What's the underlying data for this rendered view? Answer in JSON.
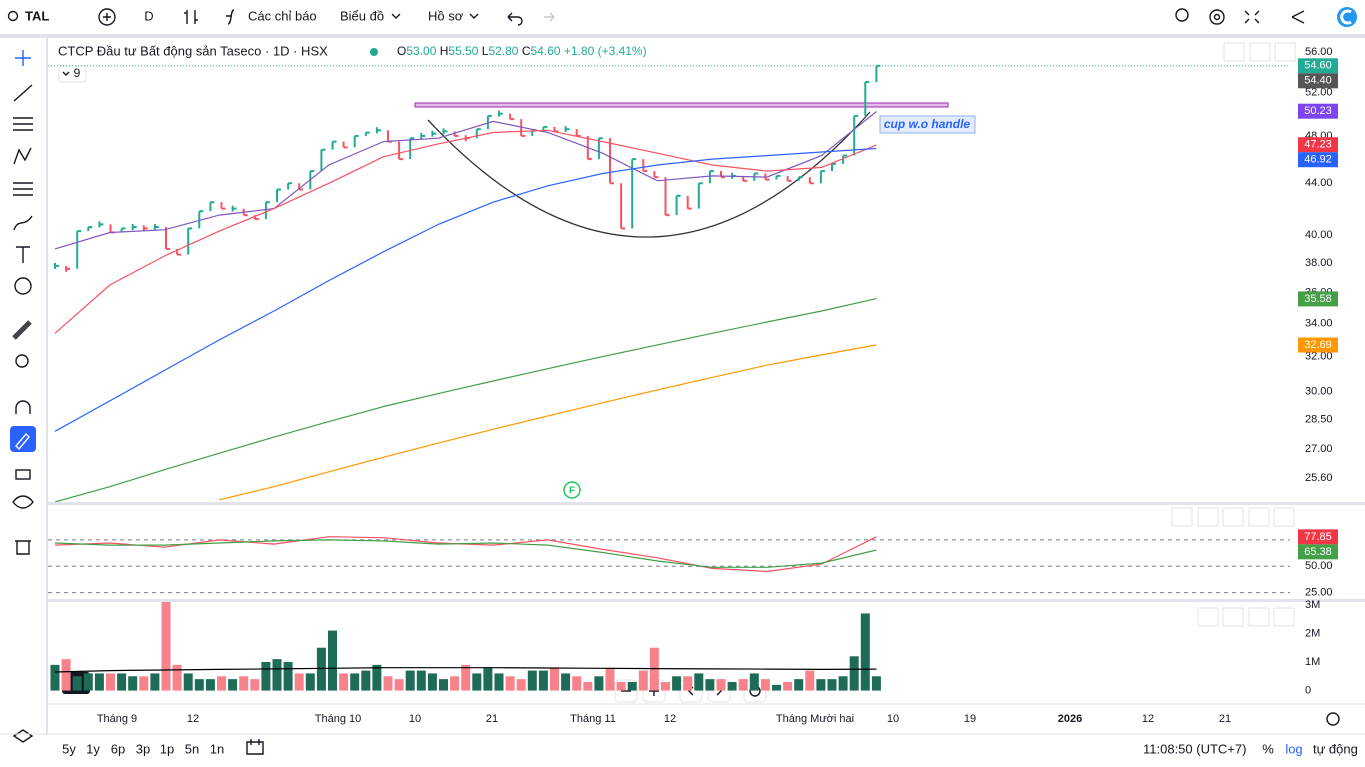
{
  "toolbar": {
    "symbol": "TAL",
    "interval": "D",
    "indicators": "Các chỉ báo",
    "chart_menu": "Biểu đồ",
    "profile": "Hồ sơ"
  },
  "legend": {
    "title": "CTCP Đầu tư Bất động sản Taseco · 1D · HSX",
    "ohlc": [
      {
        "key": "O",
        "value": "53.00"
      },
      {
        "key": "H",
        "value": "55.50"
      },
      {
        "key": "L",
        "value": "52.80"
      },
      {
        "key": "C",
        "value": "54.60"
      }
    ],
    "change": "+1.80 (+3.41%)",
    "collapsed_count": "9"
  },
  "annotation": "cup w.o handle",
  "event_marker": "F",
  "time_axis": [
    "Tháng 9",
    "12",
    "Tháng 10",
    "10",
    "21",
    "Tháng 11",
    "12",
    "Tháng Mười hai",
    "10",
    "19",
    "2026",
    "12",
    "21"
  ],
  "bottom_bar": {
    "ranges": [
      "5y",
      "1y",
      "6p",
      "3p",
      "1p",
      "5n",
      "1n"
    ],
    "clock": "11:08:50 (UTC+7)",
    "percent": "%",
    "log": "log",
    "auto": "tự động"
  },
  "chart_data": [
    {
      "type": "price-bars",
      "log_scale": true,
      "up_color": "#22ab94",
      "down_color": "#f7525f",
      "values": [
        37.8,
        37.6,
        40.3,
        40.6,
        40.8,
        40.2,
        40.5,
        40.6,
        40.5,
        40.6,
        39.0,
        38.6,
        40.5,
        41.8,
        42.5,
        42.0,
        42.0,
        41.5,
        41.2,
        42.5,
        43.5,
        44.0,
        43.5,
        45.0,
        46.8,
        47.5,
        47.0,
        48.0,
        48.3,
        48.5,
        47.5,
        46.0,
        47.8,
        48.0,
        48.2,
        48.4,
        48.0,
        47.8,
        48.6,
        49.8,
        50.0,
        49.5,
        48.0,
        48.5,
        48.8,
        48.4,
        48.6,
        48.0,
        46.0,
        47.8,
        44.0,
        40.5,
        46.0,
        45.0,
        44.5,
        41.5,
        43.0,
        42.0,
        44.0,
        45.0,
        44.5,
        44.6,
        44.2,
        44.8,
        44.3,
        44.6,
        44.2,
        44.5,
        44.0,
        45.0,
        45.6,
        46.3,
        49.8,
        53.0,
        54.6
      ],
      "ylim": [
        24.5,
        57.25
      ],
      "yticks": [
        {
          "value": 56,
          "label": "56.00"
        },
        {
          "value": 52,
          "label": "52.00"
        },
        {
          "value": 48,
          "label": "48.00"
        },
        {
          "value": 44,
          "label": "44.00"
        },
        {
          "value": 40,
          "label": "40.00"
        },
        {
          "value": 38,
          "label": "38.00"
        },
        {
          "value": 36,
          "label": "36.00"
        },
        {
          "value": 34,
          "label": "34.00"
        },
        {
          "value": 32,
          "label": "32.00"
        },
        {
          "value": 30,
          "label": "30.00"
        },
        {
          "value": 28.5,
          "label": "28.50"
        },
        {
          "value": 27,
          "label": "27.00"
        },
        {
          "value": 25.6,
          "label": "25.60"
        }
      ],
      "series": [
        {
          "color": "#7e57c2",
          "values": [
            39.0,
            40.2,
            40.4,
            41.5,
            42.0,
            45.5,
            47.5,
            47.8,
            49.3,
            48.3,
            46.5,
            44.2,
            44.6,
            44.5,
            46.3,
            50.2
          ]
        },
        {
          "color": "#f7525f",
          "values": [
            33.4,
            36.5,
            38.5,
            40.3,
            42.0,
            44.0,
            46.2,
            47.3,
            48.3,
            48.5,
            47.5,
            46.5,
            45.5,
            45.0,
            45.3,
            47.2
          ]
        },
        {
          "color": "#2962ff",
          "values": [
            27.9,
            29.5,
            31.2,
            33.0,
            34.8,
            36.8,
            38.8,
            40.8,
            42.5,
            43.8,
            44.8,
            45.5,
            46.0,
            46.3,
            46.6,
            46.9
          ]
        },
        {
          "color": "#43a047",
          "values": [
            24.5,
            25.2,
            26.0,
            26.8,
            27.6,
            28.4,
            29.2,
            29.9,
            30.6,
            31.3,
            32.0,
            32.7,
            33.4,
            34.1,
            34.8,
            35.6
          ]
        },
        {
          "color": "#ff9800",
          "values": [
            null,
            null,
            null,
            24.6,
            25.2,
            25.9,
            26.6,
            27.3,
            28.0,
            28.7,
            29.4,
            30.1,
            30.8,
            31.5,
            32.1,
            32.7
          ]
        }
      ],
      "price_labels": [
        {
          "value": 54.6,
          "label": "54.60",
          "color": "#22ab94"
        },
        {
          "value": 54.4,
          "label": "54.40",
          "color": "#555555"
        },
        {
          "value": 50.23,
          "label": "50.23",
          "color": "#7e44f0"
        },
        {
          "value": 47.23,
          "label": "47.23",
          "color": "#f23645"
        },
        {
          "value": 46.92,
          "label": "46.92",
          "color": "#2962ff"
        },
        {
          "value": 35.58,
          "label": "35.58",
          "color": "#43a047"
        },
        {
          "value": 32.69,
          "label": "32.69",
          "color": "#ff9800"
        }
      ]
    },
    {
      "type": "line",
      "ylim": [
        19,
        108
      ],
      "yticks": [
        {
          "value": 50,
          "label": "50.00"
        },
        {
          "value": 25,
          "label": "25.00"
        }
      ],
      "levels": [
        75,
        50,
        25
      ],
      "series": [
        {
          "color": "#f7525f",
          "values": [
            70,
            72,
            68,
            75,
            71,
            78,
            77,
            72,
            70,
            75,
            66,
            58,
            48,
            45,
            52,
            77.85
          ]
        },
        {
          "color": "#43a047",
          "values": [
            72,
            70,
            70,
            72,
            74,
            75,
            74,
            71,
            72,
            70,
            63,
            55,
            49,
            49,
            53,
            65.38
          ]
        }
      ],
      "price_labels": [
        {
          "value": 77.85,
          "label": "77.85",
          "color": "#f23645"
        },
        {
          "value": 65.38,
          "label": "65.38",
          "color": "#43a047"
        }
      ]
    },
    {
      "type": "bar",
      "up_color": "#1e6b57",
      "down_color": "#f7828b",
      "values": [
        0.9,
        1.1,
        0.5,
        0.6,
        0.6,
        0.6,
        0.6,
        0.5,
        0.5,
        0.6,
        3.1,
        0.9,
        0.6,
        0.4,
        0.4,
        0.5,
        0.4,
        0.5,
        0.4,
        1.0,
        1.1,
        1.0,
        0.6,
        0.6,
        1.5,
        2.1,
        0.6,
        0.6,
        0.7,
        0.9,
        0.5,
        0.4,
        0.7,
        0.7,
        0.6,
        0.4,
        0.5,
        0.9,
        0.6,
        0.8,
        0.6,
        0.5,
        0.4,
        0.7,
        0.7,
        0.8,
        0.6,
        0.5,
        0.3,
        0.5,
        0.8,
        0.3,
        0.3,
        0.7,
        1.5,
        0.3,
        0.5,
        0.5,
        0.6,
        0.4,
        0.4,
        0.3,
        0.4,
        0.6,
        0.4,
        0.2,
        0.3,
        0.4,
        0.7,
        0.4,
        0.4,
        0.5,
        1.2,
        2.7,
        0.5
      ],
      "ylim": [
        -0.4,
        3.1
      ],
      "yticks": [
        {
          "value": 3,
          "label": "3M"
        },
        {
          "value": 2,
          "label": "2M"
        },
        {
          "value": 1,
          "label": "1M"
        },
        0
      ],
      "series": [
        {
          "color": "#000000",
          "values": [
            0.65,
            0.7,
            0.72,
            0.74,
            0.76,
            0.78,
            0.8,
            0.8,
            0.8,
            0.79,
            0.78,
            0.77,
            0.76,
            0.75,
            0.74,
            0.75
          ]
        }
      ]
    }
  ]
}
